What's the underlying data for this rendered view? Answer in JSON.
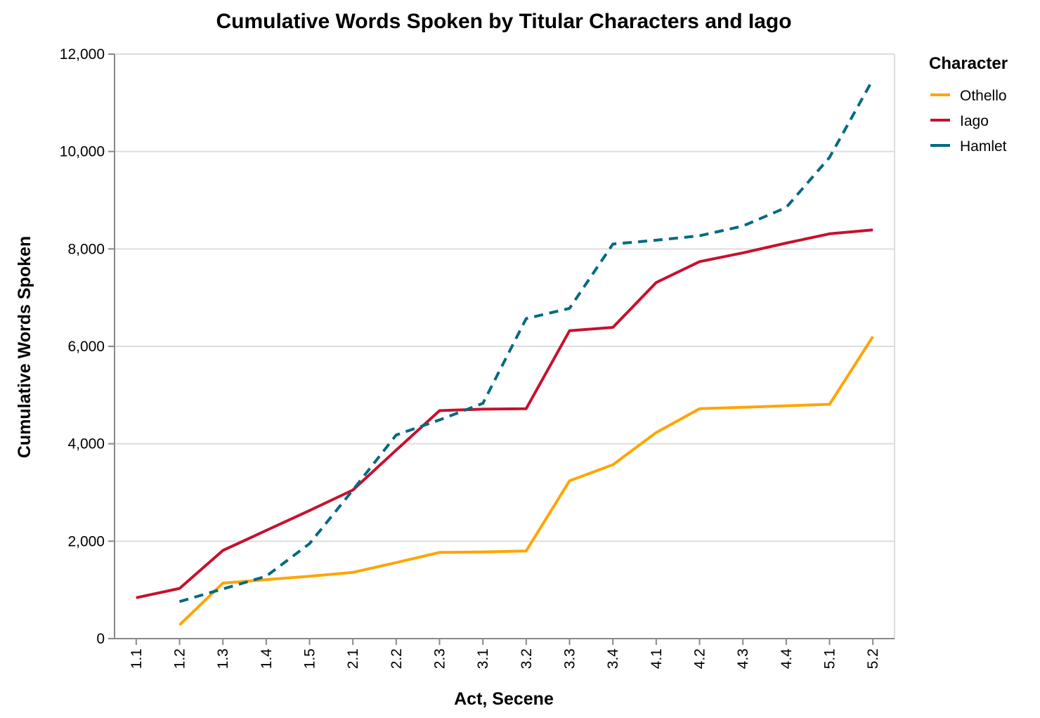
{
  "chart_data": {
    "type": "line",
    "title": "Cumulative Words Spoken by Titular Characters and Iago",
    "xlabel": "Act, Secene",
    "ylabel": "Cumulative Words Spoken",
    "categories": [
      "1.1",
      "1.2",
      "1.3",
      "1.4",
      "1.5",
      "2.1",
      "2.2",
      "2.3",
      "3.1",
      "3.2",
      "3.3",
      "3.4",
      "4.1",
      "4.2",
      "4.3",
      "4.4",
      "5.1",
      "5.2"
    ],
    "ylim": [
      0,
      12000
    ],
    "yticks": [
      0,
      2000,
      4000,
      6000,
      8000,
      10000,
      12000
    ],
    "ytick_labels": [
      "0",
      "2,000",
      "4,000",
      "6,000",
      "8,000",
      "10,000",
      "12,000"
    ],
    "grid": "horizontal",
    "legend": {
      "title": "Character",
      "position": "top-right"
    },
    "series": [
      {
        "name": "Othello",
        "color": "#ffa500",
        "dash": "solid",
        "values": [
          null,
          280,
          1140,
          1210,
          1280,
          1360,
          1560,
          1770,
          1780,
          1800,
          3240,
          3570,
          4230,
          4720,
          4750,
          4780,
          4810,
          6200
        ]
      },
      {
        "name": "Iago",
        "color": "#c8102e",
        "dash": "solid",
        "values": [
          840,
          1030,
          1810,
          2220,
          2630,
          3050,
          3870,
          4680,
          4710,
          4720,
          6320,
          6390,
          7310,
          7740,
          7920,
          8120,
          8310,
          8390
        ]
      },
      {
        "name": "Hamlet",
        "color": "#006a80",
        "dash": "dashed",
        "values": [
          null,
          760,
          1020,
          1280,
          1950,
          3050,
          4180,
          4490,
          4830,
          6570,
          6780,
          8100,
          8180,
          8270,
          8470,
          8850,
          9880,
          11480
        ]
      }
    ]
  }
}
